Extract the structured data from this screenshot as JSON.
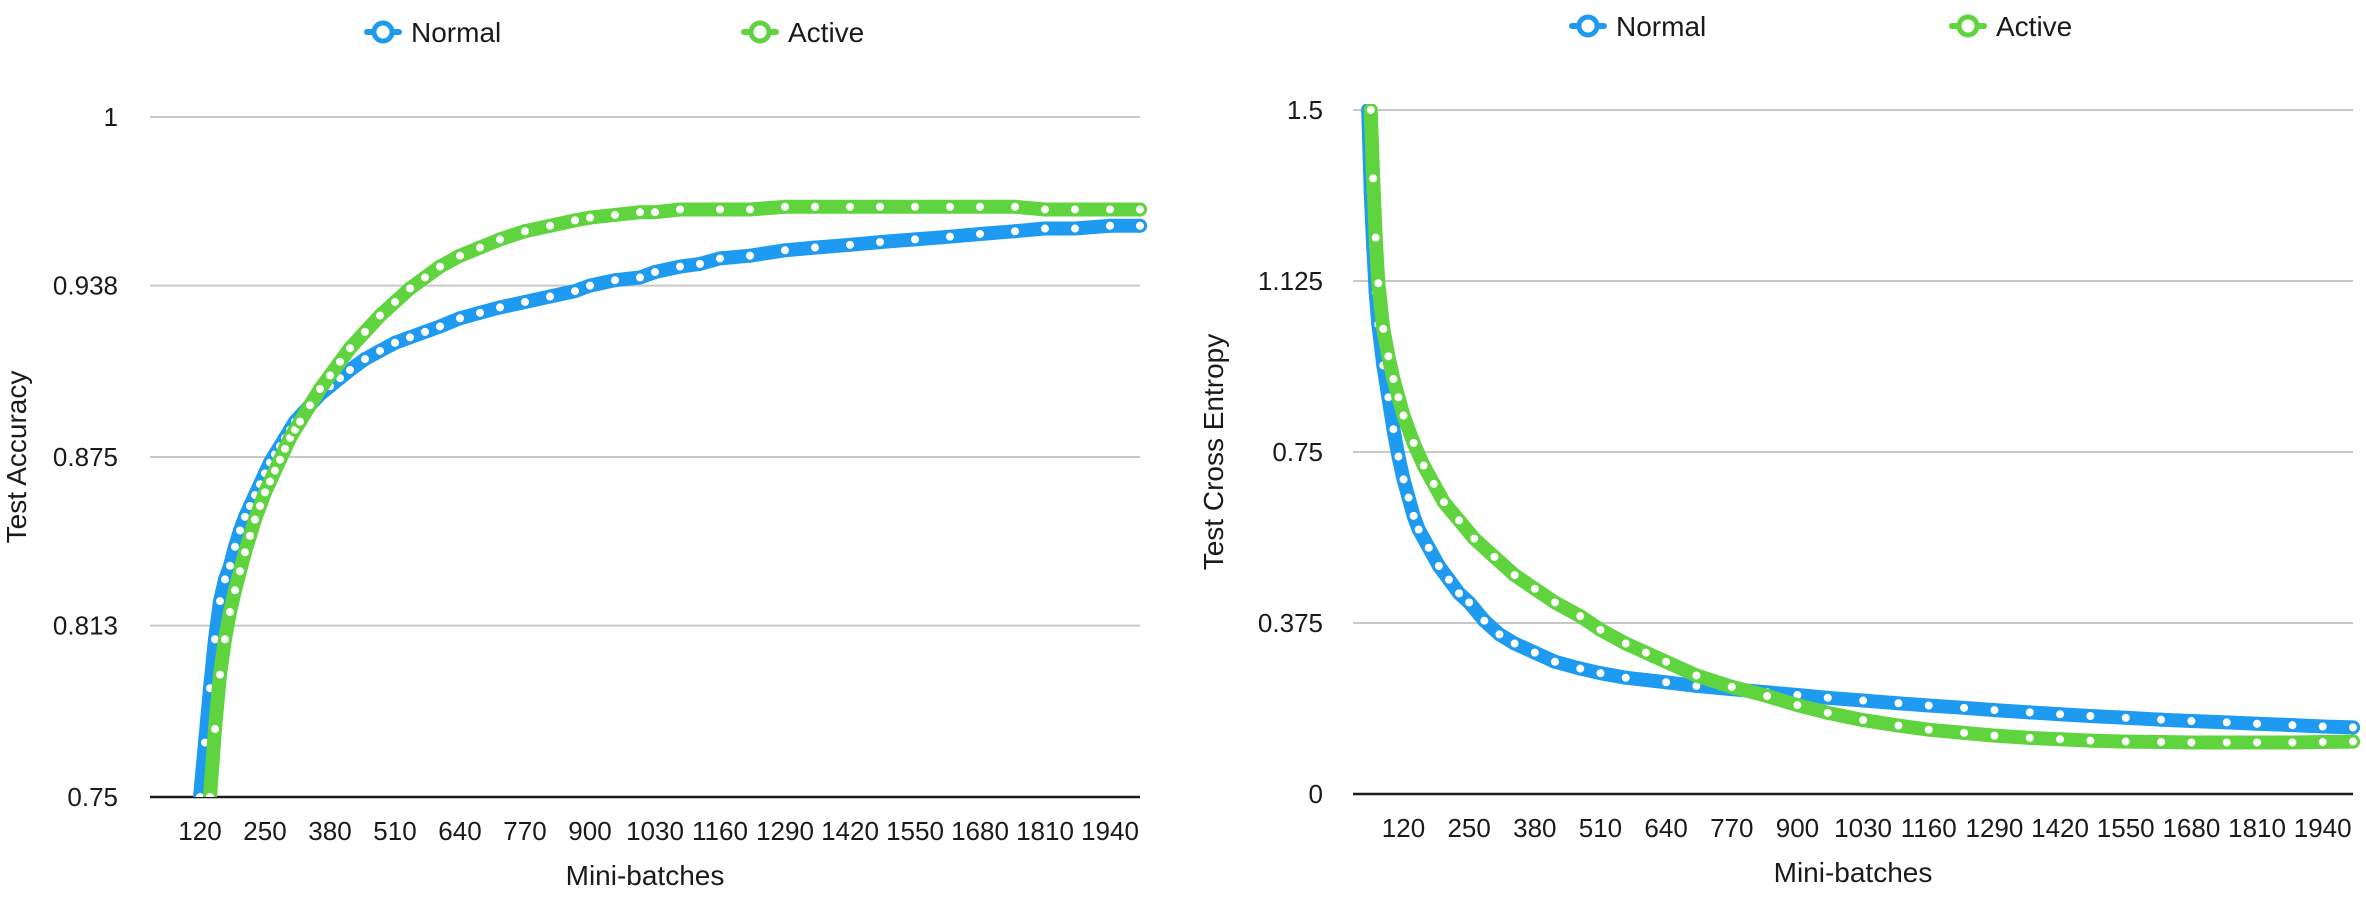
{
  "colors": {
    "normal": "#1e9bf0",
    "active": "#5fd43f"
  },
  "chart_data": [
    {
      "type": "line",
      "title": "",
      "xlabel": "Mini-batches",
      "ylabel": "Test Accuracy",
      "legend_position": "top",
      "grid": true,
      "xlim": [
        20,
        2000
      ],
      "ylim": [
        0.75,
        1
      ],
      "yticks": [
        0.75,
        0.813,
        0.875,
        0.938,
        1
      ],
      "ytick_labels": [
        "0.75",
        "0.813",
        "0.875",
        "0.938",
        "1"
      ],
      "xticks": [
        120,
        250,
        380,
        510,
        640,
        770,
        900,
        1030,
        1160,
        1290,
        1420,
        1550,
        1680,
        1810,
        1940
      ],
      "xtick_labels": [
        "120",
        "250",
        "380",
        "510",
        "640",
        "770",
        "900",
        "1030",
        "1160",
        "1290",
        "1420",
        "1550",
        "1680",
        "1810",
        "1940"
      ],
      "series": [
        {
          "name": "Normal",
          "color_key": "normal",
          "x": [
            120,
            130,
            140,
            150,
            160,
            170,
            180,
            190,
            200,
            210,
            220,
            230,
            240,
            250,
            260,
            270,
            280,
            290,
            300,
            310,
            320,
            340,
            360,
            380,
            400,
            420,
            450,
            480,
            510,
            540,
            570,
            600,
            640,
            680,
            720,
            770,
            820,
            870,
            900,
            950,
            1000,
            1030,
            1080,
            1120,
            1160,
            1220,
            1290,
            1350,
            1420,
            1480,
            1550,
            1620,
            1680,
            1750,
            1810,
            1870,
            1940,
            2000
          ],
          "y": [
            0.75,
            0.77,
            0.79,
            0.808,
            0.822,
            0.83,
            0.835,
            0.842,
            0.848,
            0.853,
            0.857,
            0.861,
            0.865,
            0.869,
            0.873,
            0.876,
            0.879,
            0.882,
            0.885,
            0.888,
            0.89,
            0.894,
            0.898,
            0.901,
            0.904,
            0.907,
            0.911,
            0.914,
            0.917,
            0.919,
            0.921,
            0.923,
            0.926,
            0.928,
            0.93,
            0.932,
            0.934,
            0.936,
            0.938,
            0.94,
            0.941,
            0.943,
            0.945,
            0.946,
            0.948,
            0.949,
            0.951,
            0.952,
            0.953,
            0.954,
            0.955,
            0.956,
            0.957,
            0.958,
            0.959,
            0.959,
            0.96,
            0.96
          ]
        },
        {
          "name": "Active",
          "color_key": "active",
          "x": [
            140,
            150,
            160,
            170,
            180,
            190,
            200,
            210,
            220,
            230,
            240,
            250,
            260,
            270,
            280,
            290,
            300,
            310,
            320,
            340,
            360,
            380,
            400,
            420,
            450,
            480,
            510,
            540,
            570,
            600,
            640,
            680,
            720,
            770,
            820,
            870,
            900,
            950,
            1000,
            1030,
            1080,
            1160,
            1220,
            1290,
            1350,
            1420,
            1480,
            1550,
            1620,
            1680,
            1750,
            1810,
            1870,
            1940,
            2000
          ],
          "y": [
            0.75,
            0.775,
            0.795,
            0.808,
            0.818,
            0.826,
            0.833,
            0.84,
            0.846,
            0.852,
            0.857,
            0.862,
            0.866,
            0.87,
            0.874,
            0.878,
            0.882,
            0.885,
            0.888,
            0.894,
            0.9,
            0.905,
            0.91,
            0.915,
            0.921,
            0.927,
            0.932,
            0.937,
            0.941,
            0.945,
            0.949,
            0.952,
            0.955,
            0.958,
            0.96,
            0.962,
            0.963,
            0.964,
            0.965,
            0.965,
            0.966,
            0.966,
            0.966,
            0.967,
            0.967,
            0.967,
            0.967,
            0.967,
            0.967,
            0.967,
            0.967,
            0.966,
            0.966,
            0.966,
            0.966
          ]
        }
      ]
    },
    {
      "type": "line",
      "title": "",
      "xlabel": "Mini-batches",
      "ylabel": "Test Cross Entropy",
      "legend_position": "top",
      "grid": true,
      "xlim": [
        20,
        2000
      ],
      "ylim": [
        0,
        1.5
      ],
      "yticks": [
        0,
        0.375,
        0.75,
        1.125,
        1.5
      ],
      "ytick_labels": [
        "0",
        "0.375",
        "0.75",
        "1.125",
        "1.5"
      ],
      "xticks": [
        120,
        250,
        380,
        510,
        640,
        770,
        900,
        1030,
        1160,
        1290,
        1420,
        1550,
        1680,
        1810,
        1940
      ],
      "xtick_labels": [
        "120",
        "250",
        "380",
        "510",
        "640",
        "770",
        "900",
        "1030",
        "1160",
        "1290",
        "1420",
        "1550",
        "1680",
        "1810",
        "1940"
      ],
      "series": [
        {
          "name": "Normal",
          "color_key": "normal",
          "x": [
            50,
            55,
            60,
            65,
            70,
            80,
            90,
            100,
            110,
            120,
            130,
            140,
            150,
            170,
            190,
            210,
            230,
            250,
            280,
            310,
            340,
            380,
            420,
            470,
            510,
            560,
            640,
            700,
            770,
            840,
            900,
            960,
            1030,
            1100,
            1160,
            1230,
            1290,
            1360,
            1420,
            1480,
            1550,
            1620,
            1680,
            1750,
            1810,
            1880,
            1940,
            2000
          ],
          "y": [
            1.5,
            1.32,
            1.2,
            1.1,
            1.03,
            0.94,
            0.87,
            0.8,
            0.74,
            0.69,
            0.65,
            0.61,
            0.58,
            0.54,
            0.5,
            0.47,
            0.44,
            0.42,
            0.38,
            0.35,
            0.33,
            0.31,
            0.29,
            0.275,
            0.265,
            0.255,
            0.245,
            0.237,
            0.23,
            0.223,
            0.217,
            0.211,
            0.205,
            0.199,
            0.194,
            0.189,
            0.184,
            0.179,
            0.175,
            0.171,
            0.167,
            0.163,
            0.16,
            0.157,
            0.154,
            0.151,
            0.148,
            0.146
          ]
        },
        {
          "name": "Active",
          "color_key": "active",
          "x": [
            55,
            60,
            65,
            70,
            80,
            90,
            100,
            110,
            120,
            140,
            160,
            180,
            200,
            230,
            260,
            300,
            340,
            380,
            420,
            470,
            510,
            560,
            600,
            640,
            700,
            770,
            840,
            900,
            960,
            1030,
            1100,
            1160,
            1230,
            1290,
            1360,
            1420,
            1480,
            1550,
            1620,
            1680,
            1750,
            1810,
            1880,
            1940,
            2000
          ],
          "y": [
            1.5,
            1.35,
            1.22,
            1.12,
            1.02,
            0.96,
            0.91,
            0.87,
            0.83,
            0.77,
            0.72,
            0.68,
            0.64,
            0.6,
            0.56,
            0.52,
            0.48,
            0.45,
            0.42,
            0.39,
            0.36,
            0.33,
            0.31,
            0.29,
            0.26,
            0.235,
            0.215,
            0.195,
            0.178,
            0.162,
            0.15,
            0.141,
            0.134,
            0.128,
            0.123,
            0.12,
            0.117,
            0.115,
            0.114,
            0.113,
            0.113,
            0.113,
            0.113,
            0.114,
            0.115
          ]
        }
      ]
    }
  ]
}
